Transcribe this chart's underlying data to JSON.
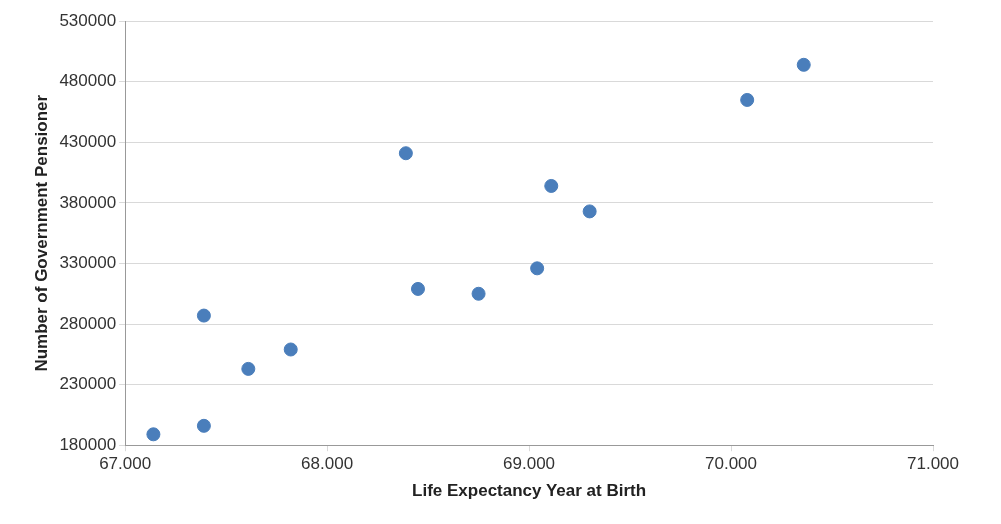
{
  "chart_data": {
    "type": "scatter",
    "xlabel": "Life Expectancy Year at Birth",
    "ylabel": "Number of Government Pensioner",
    "x": [
      67.14,
      67.39,
      67.39,
      67.61,
      67.82,
      68.39,
      68.45,
      68.75,
      69.04,
      69.11,
      69.3,
      70.08,
      70.36
    ],
    "series": [
      {
        "color": "#4a7ebb",
        "values": [
          189000,
          196000,
          287000,
          243000,
          259000,
          421000,
          309000,
          305000,
          326000,
          394000,
          373000,
          465000,
          494000
        ]
      }
    ],
    "xlim": [
      67,
      71
    ],
    "xticks": [
      {
        "value": 67,
        "label": "67.000"
      },
      {
        "value": 68,
        "label": "68.000"
      },
      {
        "value": 69,
        "label": "69.000"
      },
      {
        "value": 70,
        "label": "70.000"
      },
      {
        "value": 71,
        "label": "71.000"
      }
    ],
    "ylim": [
      180000,
      530000
    ],
    "yticks": [
      180000,
      230000,
      280000,
      330000,
      380000,
      430000,
      480000,
      530000
    ],
    "grid": "y",
    "legend": false,
    "marker": "circle"
  }
}
